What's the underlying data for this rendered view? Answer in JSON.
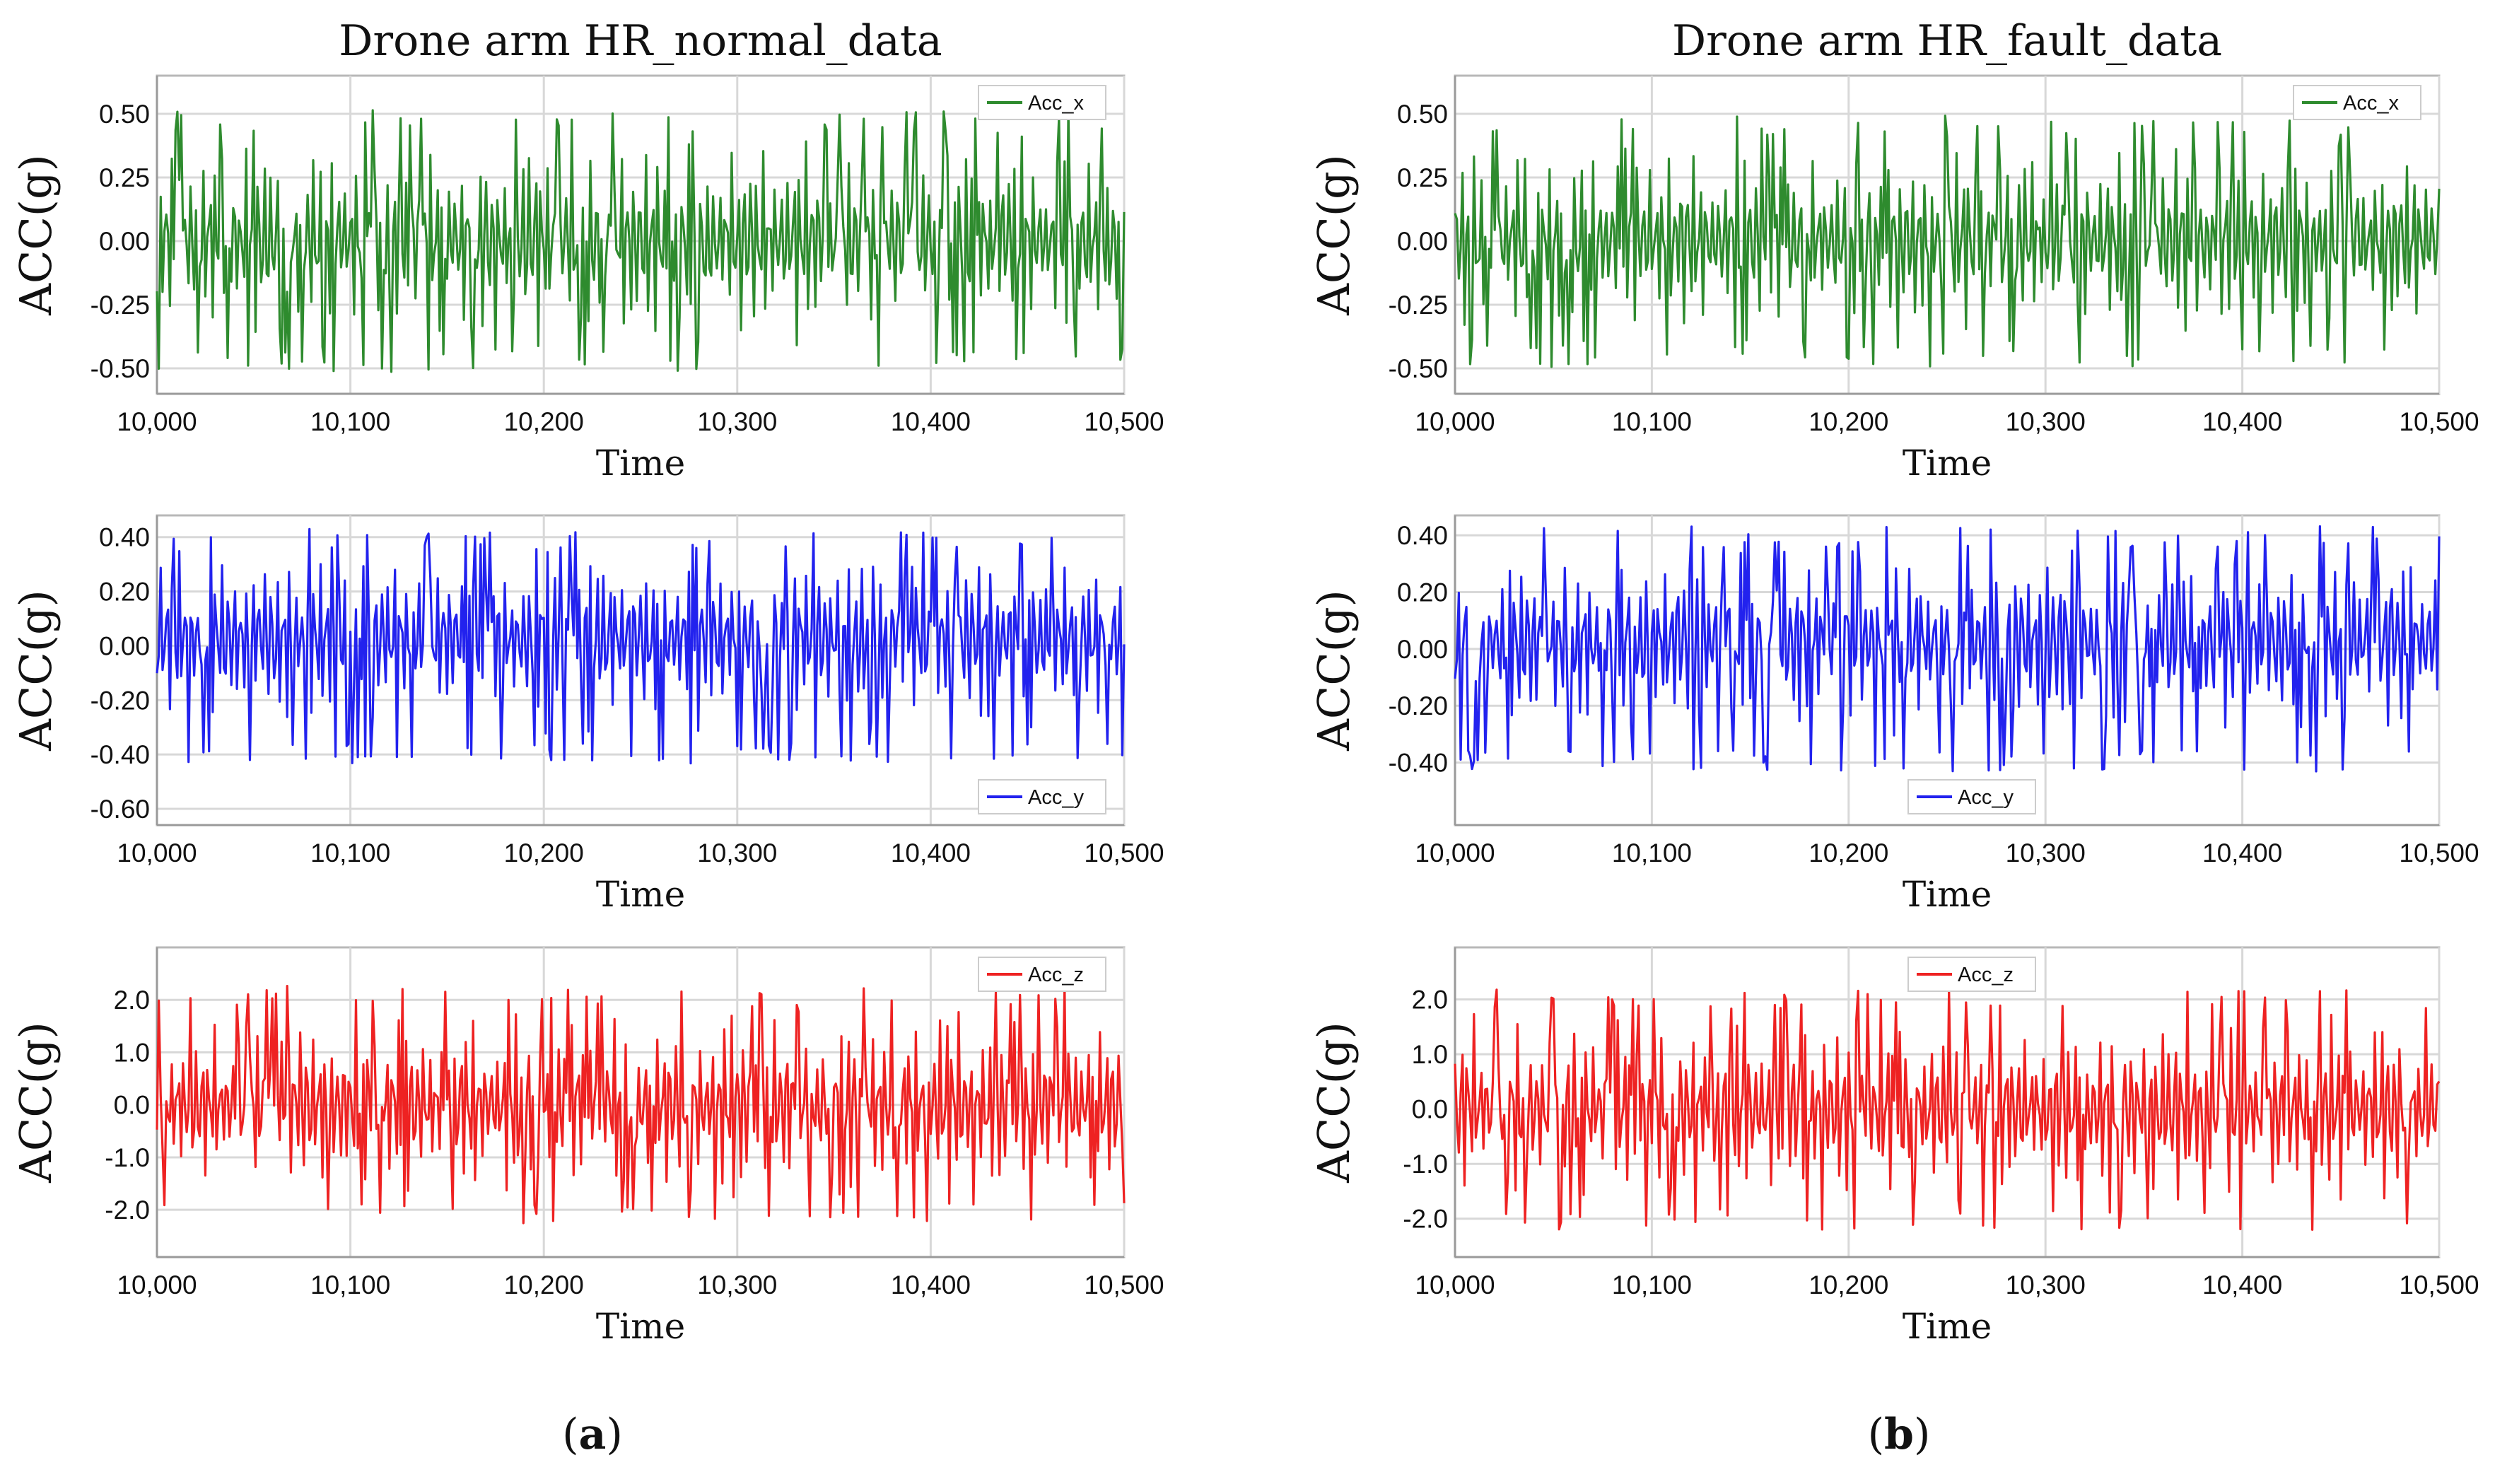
{
  "figure": {
    "panel_a_label": "a",
    "panel_b_label": "b"
  },
  "chart_data": [
    {
      "type": "line",
      "panel": "a",
      "title": "Drone arm HR_normal_data",
      "xlabel": "Time",
      "ylabel": "ACC(g)",
      "xlim": [
        10000,
        10500
      ],
      "ylim": [
        -0.6,
        0.65
      ],
      "xticks": [
        10000,
        10100,
        10200,
        10300,
        10400,
        10500
      ],
      "xtick_labels": [
        "10,000",
        "10,100",
        "10,200",
        "10,300",
        "10,400",
        "10,500"
      ],
      "yticks": [
        -0.5,
        -0.25,
        0.0,
        0.25,
        0.5
      ],
      "ytick_labels": [
        "-0.50",
        "-0.25",
        "0.00",
        "0.25",
        "0.50"
      ],
      "legend_position": "top-right",
      "grid": true,
      "series": [
        {
          "name": "Acc_x",
          "color": "#2e8b2e",
          "amplitude": 0.5,
          "seed": 11,
          "baseline": 0.0
        }
      ]
    },
    {
      "type": "line",
      "panel": "a",
      "title": "",
      "xlabel": "Time",
      "ylabel": "ACC(g)",
      "xlim": [
        10000,
        10500
      ],
      "ylim": [
        -0.66,
        0.48
      ],
      "xticks": [
        10000,
        10100,
        10200,
        10300,
        10400,
        10500
      ],
      "xtick_labels": [
        "10,000",
        "10,100",
        "10,200",
        "10,300",
        "10,400",
        "10,500"
      ],
      "yticks": [
        -0.6,
        -0.4,
        -0.2,
        0.0,
        0.2,
        0.4
      ],
      "ytick_labels": [
        "-0.60",
        "-0.40",
        "-0.20",
        "0.00",
        "0.20",
        "0.40"
      ],
      "legend_position": "bottom-right",
      "grid": true,
      "series": [
        {
          "name": "Acc_y",
          "color": "#2222ee",
          "amplitude": 0.42,
          "seed": 23,
          "baseline": 0.03
        }
      ]
    },
    {
      "type": "line",
      "panel": "a",
      "title": "",
      "xlabel": "Time",
      "ylabel": "ACC(g)",
      "xlim": [
        10000,
        10500
      ],
      "ylim": [
        -2.9,
        3.0
      ],
      "xticks": [
        10000,
        10100,
        10200,
        10300,
        10400,
        10500
      ],
      "xtick_labels": [
        "10,000",
        "10,100",
        "10,200",
        "10,300",
        "10,400",
        "10,500"
      ],
      "yticks": [
        -2.0,
        -1.0,
        0.0,
        1.0,
        2.0
      ],
      "ytick_labels": [
        "-2.0",
        "-1.0",
        "0.0",
        "1.0",
        "2.0"
      ],
      "legend_position": "top-right",
      "grid": true,
      "series": [
        {
          "name": "Acc_z",
          "color": "#ee2222",
          "amplitude": 2.2,
          "seed": 37,
          "baseline": 0.0
        }
      ]
    },
    {
      "type": "line",
      "panel": "b",
      "title": "Drone arm HR_fault_data",
      "xlabel": "Time",
      "ylabel": "ACC(g)",
      "xlim": [
        10000,
        10500
      ],
      "ylim": [
        -0.6,
        0.65
      ],
      "xticks": [
        10000,
        10100,
        10200,
        10300,
        10400,
        10500
      ],
      "xtick_labels": [
        "10,000",
        "10,100",
        "10,200",
        "10,300",
        "10,400",
        "10,500"
      ],
      "yticks": [
        -0.5,
        -0.25,
        0.0,
        0.25,
        0.5
      ],
      "ytick_labels": [
        "-0.50",
        "-0.25",
        "0.00",
        "0.25",
        "0.50"
      ],
      "legend_position": "top-right",
      "grid": true,
      "series": [
        {
          "name": "Acc_x",
          "color": "#2e8b2e",
          "amplitude": 0.48,
          "seed": 51,
          "baseline": 0.0
        }
      ]
    },
    {
      "type": "line",
      "panel": "b",
      "title": "",
      "xlabel": "Time",
      "ylabel": "ACC(g)",
      "xlim": [
        10000,
        10500
      ],
      "ylim": [
        -0.62,
        0.47
      ],
      "xticks": [
        10000,
        10100,
        10200,
        10300,
        10400,
        10500
      ],
      "xtick_labels": [
        "10,000",
        "10,100",
        "10,200",
        "10,300",
        "10,400",
        "10,500"
      ],
      "yticks": [
        -0.4,
        -0.2,
        0.0,
        0.2,
        0.4
      ],
      "ytick_labels": [
        "-0.40",
        "-0.20",
        "0.00",
        "0.20",
        "0.40"
      ],
      "legend_position": "bottom-center",
      "grid": true,
      "series": [
        {
          "name": "Acc_y",
          "color": "#2222ee",
          "amplitude": 0.42,
          "seed": 67,
          "baseline": 0.03
        }
      ]
    },
    {
      "type": "line",
      "panel": "b",
      "title": "",
      "xlabel": "Time",
      "ylabel": "ACC(g)",
      "xlim": [
        10000,
        10500
      ],
      "ylim": [
        -2.7,
        2.95
      ],
      "xticks": [
        10000,
        10100,
        10200,
        10300,
        10400,
        10500
      ],
      "xtick_labels": [
        "10,000",
        "10,100",
        "10,200",
        "10,300",
        "10,400",
        "10,500"
      ],
      "yticks": [
        -2.0,
        -1.0,
        0.0,
        1.0,
        2.0
      ],
      "ytick_labels": [
        "-2.0",
        "-1.0",
        "0.0",
        "1.0",
        "2.0"
      ],
      "legend_position": "top-center",
      "grid": true,
      "series": [
        {
          "name": "Acc_z",
          "color": "#ee2222",
          "amplitude": 2.15,
          "seed": 83,
          "baseline": 0.0
        }
      ]
    }
  ]
}
